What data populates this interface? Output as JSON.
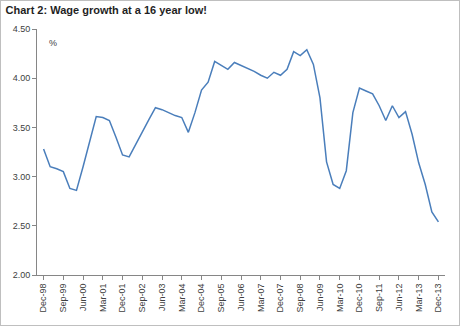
{
  "chart_data": {
    "type": "line",
    "title": "Chart 2: Wage growth at a 16 year low!",
    "ylabel": "%",
    "color": "#4a7ebb",
    "grid": false,
    "categories": [
      "Dec-98",
      null,
      null,
      "Sep-99",
      null,
      null,
      "Jun-00",
      null,
      null,
      "Mar-01",
      null,
      null,
      "Dec-01",
      null,
      null,
      "Sep-02",
      null,
      null,
      "Jun-03",
      null,
      null,
      "Mar-04",
      null,
      null,
      "Dec-04",
      null,
      null,
      "Sep-05",
      null,
      null,
      "Jun-06",
      null,
      null,
      "Mar-07",
      null,
      null,
      "Dec-07",
      null,
      null,
      "Sep-08",
      null,
      null,
      "Jun-09",
      null,
      null,
      "Mar-10",
      null,
      null,
      "Dec-10",
      null,
      null,
      "Sep-11",
      null,
      null,
      "Jun-12",
      null,
      null,
      "Mar-13",
      null,
      null,
      "Dec-13"
    ],
    "values": [
      3.28,
      3.1,
      3.08,
      3.05,
      2.88,
      2.86,
      3.1,
      3.35,
      3.61,
      3.6,
      3.57,
      3.4,
      3.22,
      3.2,
      3.33,
      3.45,
      3.58,
      3.7,
      3.68,
      3.65,
      3.62,
      3.6,
      3.45,
      3.65,
      3.88,
      3.96,
      4.17,
      4.13,
      4.09,
      4.16,
      4.13,
      4.1,
      4.07,
      4.03,
      4.0,
      4.06,
      4.03,
      4.09,
      4.27,
      4.23,
      4.29,
      4.14,
      3.8,
      3.15,
      2.92,
      2.88,
      3.06,
      3.65,
      3.9,
      3.87,
      3.84,
      3.72,
      3.57,
      3.72,
      3.6,
      3.66,
      3.43,
      3.14,
      2.92,
      2.64,
      2.54
    ],
    "ylim": [
      2.0,
      4.5
    ],
    "yticks": [
      {
        "value": 2.0,
        "label": "2.00"
      },
      {
        "value": 2.5,
        "label": "2.50"
      },
      {
        "value": 3.0,
        "label": "3.00"
      },
      {
        "value": 3.5,
        "label": "3.50"
      },
      {
        "value": 4.0,
        "label": "4.00"
      },
      {
        "value": 4.5,
        "label": "4.50"
      }
    ]
  }
}
